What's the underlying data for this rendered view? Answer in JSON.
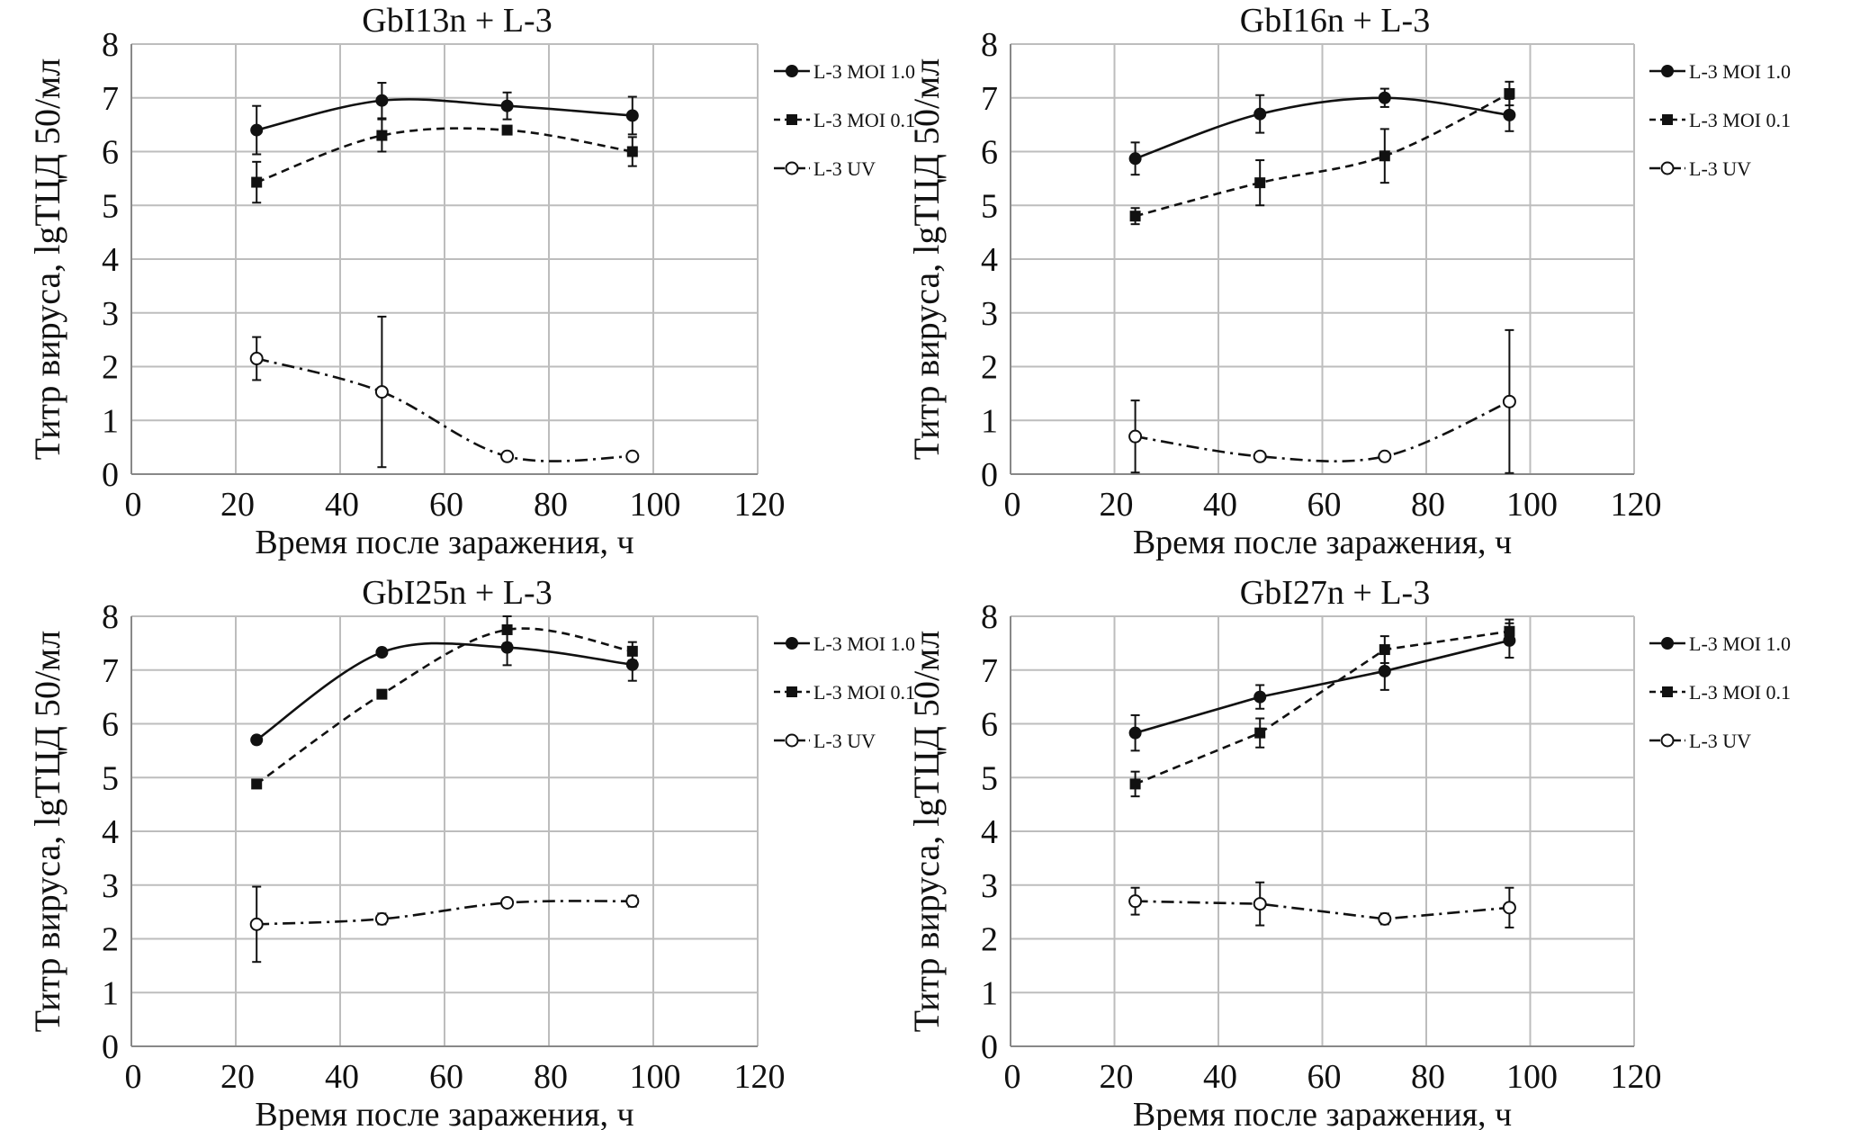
{
  "chart_data": [
    {
      "type": "line",
      "title": "GbI13n + L-3",
      "xlabel": "Время после заражения, ч",
      "ylabel": "Титр вируса, lgТЦД 50/мл",
      "xlim": [
        0,
        120
      ],
      "ylim": [
        0,
        8
      ],
      "xticks": [
        0,
        20,
        40,
        60,
        80,
        100,
        120
      ],
      "yticks": [
        0,
        1,
        2,
        3,
        4,
        5,
        6,
        7,
        8
      ],
      "grid": true,
      "legend": "right",
      "smooth": true,
      "x": [
        24,
        48,
        72,
        96
      ],
      "series": [
        {
          "name": "L-3 MOI 1.0",
          "marker": "filled-circle",
          "line": "solid",
          "values": [
            6.4,
            6.95,
            6.85,
            6.67
          ],
          "error": [
            0.45,
            0.33,
            0.25,
            0.35
          ]
        },
        {
          "name": "L-3 MOI 0.1",
          "marker": "filled-square",
          "line": "dashed",
          "values": [
            5.43,
            6.3,
            6.4,
            6.0
          ],
          "error": [
            0.38,
            0.3,
            0.05,
            0.27
          ]
        },
        {
          "name": "L-3 UV",
          "marker": "open-circle",
          "line": "dash-dot",
          "values": [
            2.15,
            1.53,
            0.33,
            0.33
          ],
          "error": [
            0.4,
            1.4,
            0.03,
            0.03
          ]
        }
      ]
    },
    {
      "type": "line",
      "title": "GbI16n + L-3",
      "xlabel": "Время после заражения, ч",
      "ylabel": "Титр вируса, lgТЦД 50/мл",
      "xlim": [
        0,
        120
      ],
      "ylim": [
        0,
        8
      ],
      "xticks": [
        0,
        20,
        40,
        60,
        80,
        100,
        120
      ],
      "yticks": [
        0,
        1,
        2,
        3,
        4,
        5,
        6,
        7,
        8
      ],
      "grid": true,
      "legend": "right",
      "smooth": true,
      "x": [
        24,
        48,
        72,
        96
      ],
      "series": [
        {
          "name": "L-3 MOI 1.0",
          "marker": "filled-circle",
          "line": "solid",
          "values": [
            5.87,
            6.7,
            7.0,
            6.68
          ],
          "error": [
            0.3,
            0.35,
            0.17,
            0.3
          ]
        },
        {
          "name": "L-3 MOI 0.1",
          "marker": "filled-square",
          "line": "dashed",
          "values": [
            4.8,
            5.42,
            5.92,
            7.08
          ],
          "error": [
            0.15,
            0.42,
            0.5,
            0.22
          ]
        },
        {
          "name": "L-3 UV",
          "marker": "open-circle",
          "line": "dash-dot",
          "values": [
            0.7,
            0.33,
            0.33,
            1.35
          ],
          "error": [
            0.67,
            0.03,
            0.03,
            1.33
          ]
        }
      ]
    },
    {
      "type": "line",
      "title": "GbI25n + L-3",
      "xlabel": "Время после заражения, ч",
      "ylabel": "Титр вируса, lgТЦД 50/мл",
      "xlim": [
        0,
        120
      ],
      "ylim": [
        0,
        8
      ],
      "xticks": [
        0,
        20,
        40,
        60,
        80,
        100,
        120
      ],
      "yticks": [
        0,
        1,
        2,
        3,
        4,
        5,
        6,
        7,
        8
      ],
      "grid": true,
      "legend": "right",
      "smooth": true,
      "x": [
        24,
        48,
        72,
        96
      ],
      "series": [
        {
          "name": "L-3 MOI 1.0",
          "marker": "filled-circle",
          "line": "solid",
          "values": [
            5.7,
            7.33,
            7.42,
            7.1
          ],
          "error": [
            0.07,
            0.05,
            0.33,
            0.3
          ]
        },
        {
          "name": "L-3 MOI 0.1",
          "marker": "filled-square",
          "line": "dashed",
          "values": [
            4.88,
            6.55,
            7.75,
            7.35
          ],
          "error": [
            0.03,
            0.05,
            0.25,
            0.17
          ]
        },
        {
          "name": "L-3 UV",
          "marker": "open-circle",
          "line": "dash-dot",
          "values": [
            2.27,
            2.37,
            2.67,
            2.7
          ],
          "error": [
            0.7,
            0.1,
            0.03,
            0.1
          ]
        }
      ]
    },
    {
      "type": "line",
      "title": "GbI27n + L-3",
      "xlabel": "Время после заражения, ч",
      "ylabel": "Титр вируса, lgТЦД 50/мл",
      "xlim": [
        0,
        120
      ],
      "ylim": [
        0,
        8
      ],
      "xticks": [
        0,
        20,
        40,
        60,
        80,
        100,
        120
      ],
      "yticks": [
        0,
        1,
        2,
        3,
        4,
        5,
        6,
        7,
        8
      ],
      "grid": true,
      "legend": "right",
      "smooth": false,
      "x": [
        24,
        48,
        72,
        96
      ],
      "series": [
        {
          "name": "L-3 MOI 1.0",
          "marker": "filled-circle",
          "line": "solid",
          "values": [
            5.83,
            6.5,
            6.98,
            7.55
          ],
          "error": [
            0.33,
            0.22,
            0.35,
            0.32
          ]
        },
        {
          "name": "L-3 MOI 0.1",
          "marker": "filled-square",
          "line": "dashed",
          "values": [
            4.88,
            5.83,
            7.38,
            7.72
          ],
          "error": [
            0.23,
            0.27,
            0.25,
            0.22
          ]
        },
        {
          "name": "L-3 UV",
          "marker": "open-circle",
          "line": "dash-dot",
          "values": [
            2.7,
            2.65,
            2.37,
            2.58
          ],
          "error": [
            0.25,
            0.4,
            0.1,
            0.37
          ]
        }
      ]
    }
  ]
}
